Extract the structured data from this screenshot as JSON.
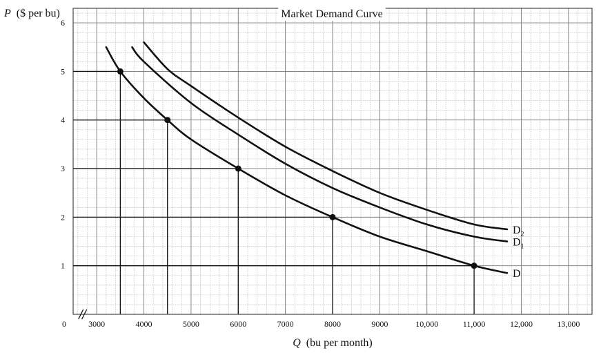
{
  "chart_data": {
    "type": "line",
    "title": "Market Demand Curve",
    "ylabel_symbol": "P",
    "ylabel_unit": "($ per bu)",
    "xlabel_symbol": "Q",
    "xlabel_unit": "(bu per month)",
    "x_origin_label": "0",
    "xlim": [
      2500,
      13500
    ],
    "ylim": [
      0,
      6.3
    ],
    "x_ticks": [
      {
        "value": 3000,
        "label": "3000"
      },
      {
        "value": 4000,
        "label": "4000"
      },
      {
        "value": 5000,
        "label": "5000"
      },
      {
        "value": 6000,
        "label": "6000"
      },
      {
        "value": 7000,
        "label": "7000"
      },
      {
        "value": 8000,
        "label": "8000"
      },
      {
        "value": 9000,
        "label": "9000"
      },
      {
        "value": 10000,
        "label": "10,000"
      },
      {
        "value": 11000,
        "label": "11,000"
      },
      {
        "value": 12000,
        "label": "12,000"
      },
      {
        "value": 13000,
        "label": "13,000"
      }
    ],
    "y_ticks": [
      {
        "value": 1,
        "label": "1"
      },
      {
        "value": 2,
        "label": "2"
      },
      {
        "value": 3,
        "label": "3"
      },
      {
        "value": 4,
        "label": "4"
      },
      {
        "value": 5,
        "label": "5"
      },
      {
        "value": 6,
        "label": "6"
      }
    ],
    "grid": true,
    "axis_break": "x",
    "series": [
      {
        "name": "D",
        "sub": "",
        "points": [
          [
            3200,
            5.5
          ],
          [
            3500,
            5.0
          ],
          [
            4000,
            4.45
          ],
          [
            4500,
            4.0
          ],
          [
            5000,
            3.6
          ],
          [
            6000,
            3.0
          ],
          [
            7000,
            2.45
          ],
          [
            8000,
            2.0
          ],
          [
            9000,
            1.6
          ],
          [
            10000,
            1.3
          ],
          [
            11000,
            1.0
          ],
          [
            11700,
            0.85
          ]
        ]
      },
      {
        "name": "D",
        "sub": "1",
        "points": [
          [
            3750,
            5.5
          ],
          [
            4000,
            5.2
          ],
          [
            5000,
            4.35
          ],
          [
            6000,
            3.7
          ],
          [
            7000,
            3.1
          ],
          [
            8000,
            2.6
          ],
          [
            9000,
            2.2
          ],
          [
            10000,
            1.85
          ],
          [
            11000,
            1.6
          ],
          [
            11700,
            1.5
          ]
        ]
      },
      {
        "name": "D",
        "sub": "2",
        "points": [
          [
            4000,
            5.6
          ],
          [
            4500,
            5.05
          ],
          [
            5000,
            4.7
          ],
          [
            6000,
            4.05
          ],
          [
            7000,
            3.45
          ],
          [
            8000,
            2.95
          ],
          [
            9000,
            2.5
          ],
          [
            10000,
            2.15
          ],
          [
            11000,
            1.85
          ],
          [
            11700,
            1.75
          ]
        ]
      }
    ],
    "marked_points": [
      {
        "x": 3500,
        "y": 5
      },
      {
        "x": 4500,
        "y": 4
      },
      {
        "x": 6000,
        "y": 3
      },
      {
        "x": 8000,
        "y": 2
      },
      {
        "x": 11000,
        "y": 1
      }
    ]
  }
}
